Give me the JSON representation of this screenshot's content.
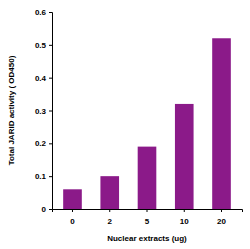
{
  "chart_data": {
    "type": "bar",
    "x_label": "Nuclear extracts (ug)",
    "y_label": "Total JARID activity ( OD450)",
    "categories": [
      "0",
      "2",
      "5",
      "10",
      "20"
    ],
    "values": [
      0.06,
      0.1,
      0.19,
      0.32,
      0.52
    ],
    "color": "#8B1A89",
    "ylim": [
      0,
      0.6
    ],
    "yticks": [
      0,
      0.1,
      0.2,
      0.3,
      0.4,
      0.5,
      0.6
    ],
    "grid": false
  }
}
